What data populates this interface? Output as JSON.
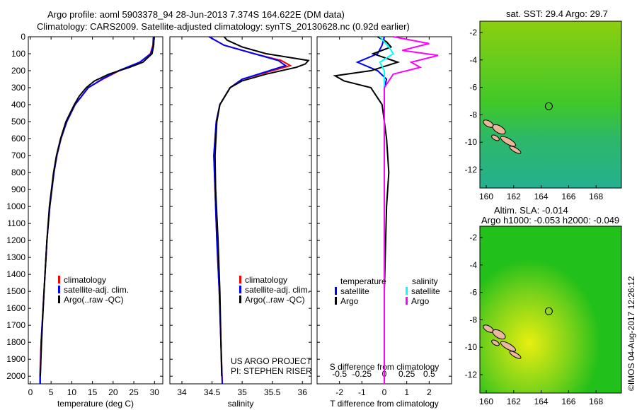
{
  "title": {
    "line1": "Argo profile: aoml 5903378_94 28-Jun-2013 7.374S 164.622E (DM data)",
    "line2": "Climatology: CARS2009. Satellite-adjusted climatology: synTS_20130628.nc (0.92d earlier)"
  },
  "colors": {
    "climatology": "#ff0000",
    "satellite": "#0000ff",
    "argo": "#000000",
    "sal_satellite": "#00ffff",
    "sal_argo": "#ff00ff"
  },
  "chart_data": [
    {
      "type": "line",
      "id": "temperature",
      "xlabel": "temperature (deg C)",
      "ylabel": "",
      "xlim": [
        -0.5,
        32
      ],
      "ylim": [
        2045,
        0
      ],
      "xticks": [
        0,
        5,
        10,
        15,
        20,
        25,
        30
      ],
      "yticks": [
        0,
        100,
        200,
        300,
        400,
        500,
        600,
        700,
        800,
        900,
        1000,
        1100,
        1200,
        1300,
        1400,
        1500,
        1600,
        1700,
        1800,
        1900,
        2000
      ],
      "legend": [
        "climatology",
        "satellite-adj. clim.",
        "Argo(..raw -QC)"
      ],
      "series": [
        {
          "name": "climatology",
          "color": "#ff0000",
          "depth": [
            0,
            50,
            100,
            150,
            200,
            250,
            300,
            400,
            500,
            600,
            700,
            800,
            1000,
            1200,
            1500,
            1800,
            2000,
            2045
          ],
          "values": [
            29.7,
            29.6,
            29.0,
            26.5,
            21.5,
            17.5,
            14.0,
            10.8,
            8.8,
            7.4,
            6.4,
            5.7,
            4.7,
            4.0,
            3.3,
            2.6,
            2.3,
            2.3
          ]
        },
        {
          "name": "satellite-adj. clim.",
          "color": "#0000ff",
          "depth": [
            0,
            50,
            100,
            150,
            200,
            250,
            300,
            400,
            500,
            600,
            700,
            800,
            1000,
            1200,
            1500,
            1800,
            2000,
            2045
          ],
          "values": [
            29.8,
            29.7,
            29.1,
            26.4,
            21.3,
            17.3,
            14.0,
            10.8,
            8.8,
            7.4,
            6.4,
            5.7,
            4.7,
            4.0,
            3.3,
            2.6,
            2.4,
            2.4
          ]
        },
        {
          "name": "Argo(..raw -QC)",
          "color": "#000000",
          "depth": [
            0,
            50,
            100,
            150,
            180,
            220,
            260,
            300,
            350,
            400,
            500,
            600,
            700,
            800,
            1000,
            1200,
            1500,
            1800,
            2000
          ],
          "values": [
            29.9,
            29.8,
            29.4,
            27.2,
            24.0,
            19.0,
            15.5,
            13.5,
            11.8,
            10.6,
            8.6,
            7.3,
            6.3,
            5.6,
            4.6,
            4.0,
            3.3,
            2.7,
            2.4
          ]
        }
      ]
    },
    {
      "type": "line",
      "id": "salinity",
      "xlabel": "salinity",
      "ylabel": "",
      "xlim": [
        33.8,
        36.15
      ],
      "ylim": [
        2045,
        0
      ],
      "xticks": [
        34,
        34.5,
        35,
        35.5,
        36
      ],
      "legend": [
        "climatology",
        "satellite-adj. clim.",
        "Argo(..raw -QC)"
      ],
      "annotation": [
        "US ARGO PROJECT",
        "PI: STEPHEN RISER"
      ],
      "series": [
        {
          "name": "climatology",
          "color": "#ff0000",
          "depth": [
            0,
            50,
            100,
            140,
            170,
            200,
            250,
            300,
            400,
            500,
            700,
            900,
            1200,
            1500,
            2045
          ],
          "values": [
            34.45,
            34.7,
            35.2,
            35.65,
            35.8,
            35.5,
            35.0,
            34.8,
            34.63,
            34.57,
            34.53,
            34.55,
            34.58,
            34.62,
            34.67
          ]
        },
        {
          "name": "satellite-adj. clim.",
          "color": "#0000ff",
          "depth": [
            0,
            50,
            100,
            140,
            170,
            200,
            250,
            300,
            400,
            500,
            700,
            900,
            1200,
            1500,
            2045
          ],
          "values": [
            34.45,
            34.7,
            35.2,
            35.6,
            35.72,
            35.45,
            35.0,
            34.8,
            34.63,
            34.57,
            34.53,
            34.55,
            34.58,
            34.62,
            34.67
          ]
        },
        {
          "name": "Argo(..raw -QC)",
          "color": "#000000",
          "depth": [
            0,
            20,
            60,
            100,
            140,
            160,
            180,
            220,
            260,
            300,
            400,
            500,
            700,
            900,
            1200,
            1500,
            2000
          ],
          "values": [
            34.7,
            34.75,
            35.0,
            35.4,
            36.1,
            36.05,
            35.9,
            35.4,
            35.0,
            34.8,
            34.63,
            34.58,
            34.55,
            34.56,
            34.6,
            34.63,
            34.66
          ]
        }
      ]
    },
    {
      "type": "line",
      "id": "difference",
      "xlabel": "T difference from climatology",
      "x2label": "S difference from climatology",
      "xlim": [
        -3,
        3
      ],
      "ylim": [
        2045,
        0
      ],
      "xticks": [
        -2,
        -1,
        0,
        1,
        2
      ],
      "x2ticks": [
        -0.5,
        -0.25,
        0,
        0.25,
        0.5
      ],
      "legend_title_t": "temperature",
      "legend_title_s": "salinity",
      "legend": [
        "satellite",
        "Argo",
        "satellite",
        "Argo"
      ],
      "series": [
        {
          "name": "T satellite",
          "color": "#0000ff",
          "depth": [
            0,
            50,
            100,
            150,
            200,
            250,
            300,
            400,
            600,
            1000,
            2045
          ],
          "values": [
            0,
            -0.1,
            -0.3,
            -1.2,
            -0.3,
            0.1,
            0,
            0,
            0,
            0,
            0
          ]
        },
        {
          "name": "T Argo",
          "color": "#000000",
          "depth": [
            0,
            30,
            60,
            100,
            150,
            200,
            230,
            260,
            300,
            400,
            600,
            800,
            1000,
            1500,
            2045
          ],
          "values": [
            -0.3,
            0.1,
            0.3,
            -0.5,
            0.6,
            -0.6,
            -2.2,
            -1.8,
            -0.6,
            -0.1,
            0.1,
            0.2,
            0.1,
            0,
            0
          ]
        },
        {
          "name": "S satellite",
          "color": "#00ffff",
          "depth": [
            0,
            60,
            100,
            150,
            200,
            250,
            400,
            1000,
            2045
          ],
          "values": [
            -0.05,
            0.05,
            0.1,
            -0.05,
            0,
            0,
            0,
            0,
            0
          ]
        },
        {
          "name": "S Argo",
          "color": "#ff00ff",
          "depth": [
            0,
            40,
            80,
            110,
            150,
            180,
            220,
            300,
            600,
            1000,
            2045
          ],
          "values": [
            0.1,
            0.5,
            0.2,
            0.6,
            0.3,
            0.4,
            0.1,
            0,
            0,
            0,
            0
          ]
        }
      ]
    }
  ],
  "maps": {
    "sst": {
      "title": "sat. SST: 29.4 Argo: 29.7",
      "xticks": [
        "160",
        "162",
        "164",
        "166",
        "168"
      ],
      "yticks": [
        "-2",
        "-4",
        "-6",
        "-8",
        "-10",
        "-12"
      ]
    },
    "sla": {
      "title1": "Altim. SLA: -0.014",
      "title2": "Argo h1000: -0.053 h2000: -0.049",
      "xticks": [
        "160",
        "162",
        "164",
        "166",
        "168"
      ],
      "yticks": [
        "-2",
        "-4",
        "-6",
        "-8",
        "-10",
        "-12"
      ]
    }
  },
  "footer": "©IMOS 04-Aug-2017 12:26:12"
}
